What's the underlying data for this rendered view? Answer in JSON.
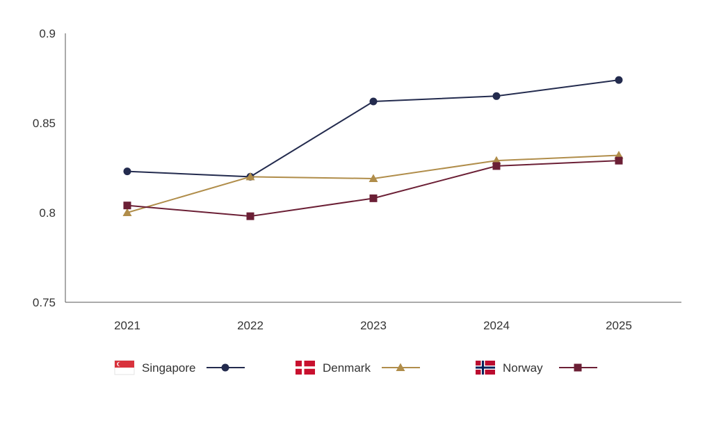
{
  "chart_data": {
    "type": "line",
    "title": "",
    "xlabel": "",
    "ylabel": "",
    "x": [
      "2021",
      "2022",
      "2023",
      "2024",
      "2025"
    ],
    "ylim": [
      0.75,
      0.9
    ],
    "yticks": [
      "0.75",
      "0.8",
      "0.85",
      "0.9"
    ],
    "grid": false,
    "legend_placement": "bottom",
    "series": [
      {
        "name": "Singapore",
        "color": "#232b4e",
        "marker": "circle",
        "flag": "singapore-flag-icon",
        "values": [
          0.823,
          0.82,
          0.862,
          0.865,
          0.874
        ]
      },
      {
        "name": "Denmark",
        "color": "#b08d4a",
        "marker": "triangle",
        "flag": "denmark-flag-icon",
        "values": [
          0.8,
          0.82,
          0.819,
          0.829,
          0.832
        ]
      },
      {
        "name": "Norway",
        "color": "#6b1f35",
        "marker": "square",
        "flag": "norway-flag-icon",
        "values": [
          0.804,
          0.798,
          0.808,
          0.826,
          0.829
        ]
      }
    ]
  }
}
